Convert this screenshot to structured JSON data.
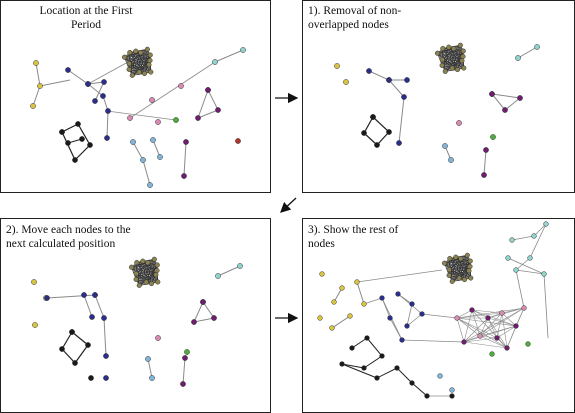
{
  "panels": [
    {
      "id": "p1",
      "caption": "Location at the First\nPeriod"
    },
    {
      "id": "p2",
      "caption": "1). Removal of non-\noverlapped nodes"
    },
    {
      "id": "p3",
      "caption": "2). Move each nodes to the\nnext calculated position"
    },
    {
      "id": "p4",
      "caption": "3). Show the rest of\nnodes"
    }
  ],
  "colors": {
    "edge": "#8a8a8a",
    "dark_edge": "#222222",
    "border": "#222222",
    "olive": "#8b8350",
    "navy": "#2c2e8c",
    "yellow": "#d9c440",
    "black": "#1a1a1a",
    "purple": "#6e1e6e",
    "pink": "#d88ab0",
    "lightblue": "#7fb6d9",
    "cyan": "#8fd3cc",
    "green": "#4caf3c",
    "red": "#b0342a"
  }
}
